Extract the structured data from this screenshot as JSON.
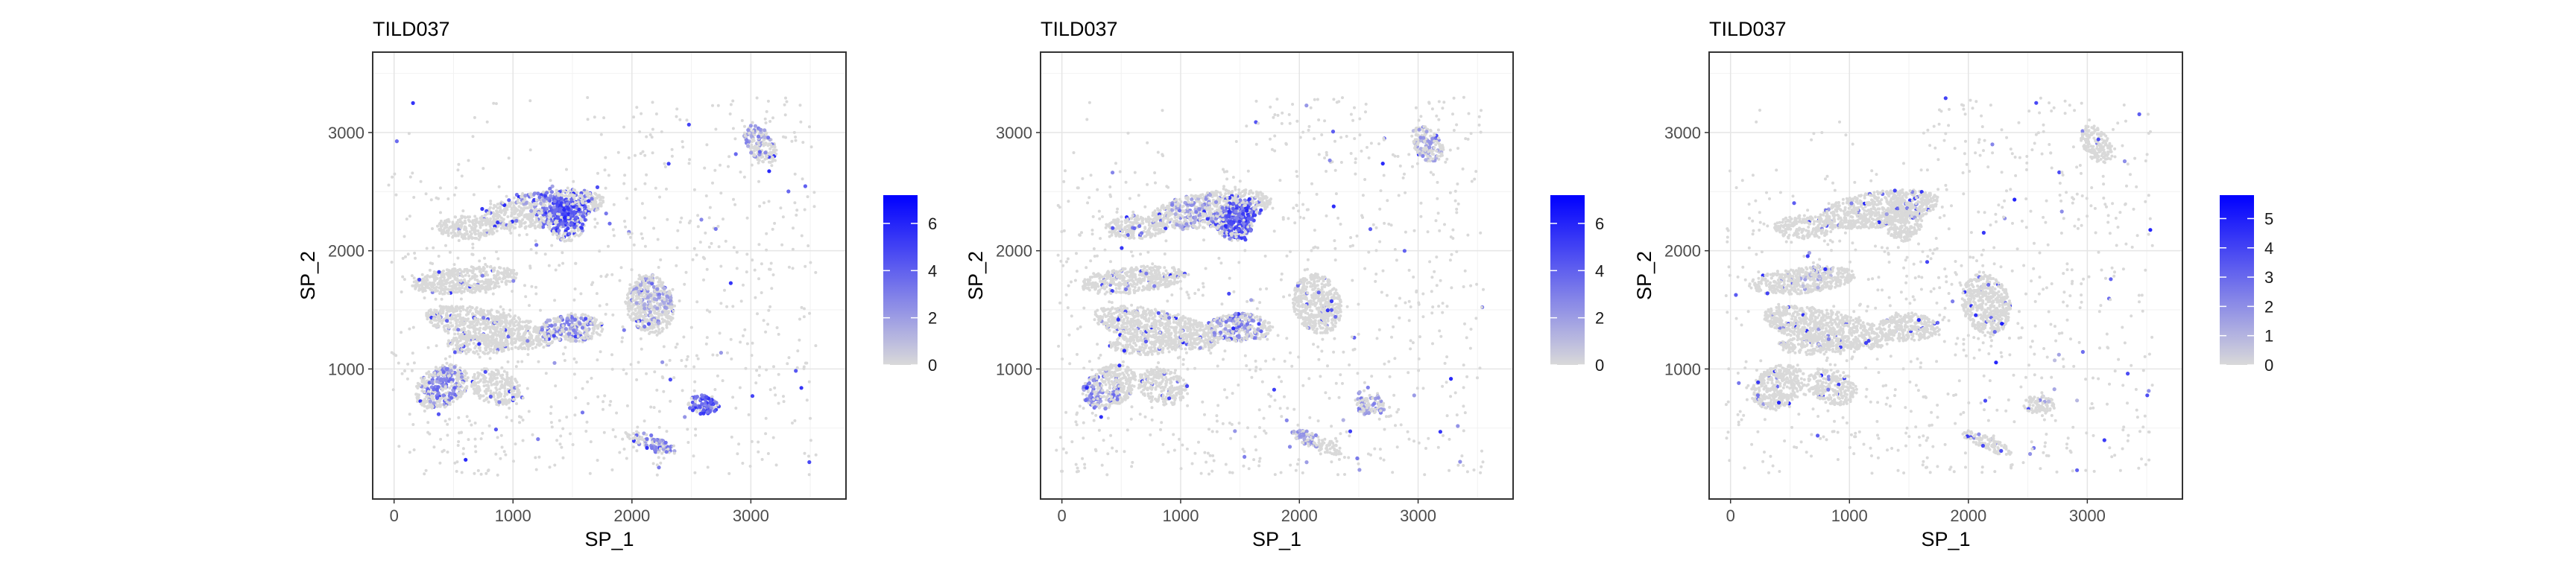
{
  "chart_data": [
    {
      "type": "scatter",
      "title": "TILD037",
      "xlabel": "SP_1",
      "ylabel": "SP_2",
      "xlim": [
        -180,
        3800
      ],
      "ylim": [
        -100,
        3680
      ],
      "xticks": [
        0,
        1000,
        2000,
        3000
      ],
      "yticks": [
        1000,
        2000,
        3000
      ],
      "grid": true,
      "legend": {
        "position": "right",
        "type": "colorbar",
        "min": 0,
        "max": 7.2,
        "ticks": [
          0,
          2,
          4,
          6
        ]
      },
      "color_low": "#d9d9d9",
      "color_high": "#0000ff",
      "seed": 11,
      "hotspots": [
        {
          "x": 1450,
          "y": 2330,
          "intensity": 0.85
        },
        {
          "x": 1230,
          "y": 2480,
          "intensity": 0.55
        },
        {
          "x": 420,
          "y": 880,
          "intensity": 0.6
        },
        {
          "x": 2620,
          "y": 680,
          "intensity": 0.8
        },
        {
          "x": 2200,
          "y": 360,
          "intensity": 0.55
        },
        {
          "x": 1450,
          "y": 1350,
          "intensity": 0.5
        },
        {
          "x": 3000,
          "y": 3000,
          "intensity": 0.45
        },
        {
          "x": 2200,
          "y": 1600,
          "intensity": 0.35
        }
      ]
    },
    {
      "type": "scatter",
      "title": "TILD037",
      "xlabel": "SP_1",
      "ylabel": "SP_2",
      "xlim": [
        -180,
        3800
      ],
      "ylim": [
        -100,
        3680
      ],
      "xticks": [
        0,
        1000,
        2000,
        3000
      ],
      "yticks": [
        1000,
        2000,
        3000
      ],
      "grid": true,
      "legend": {
        "position": "right",
        "type": "colorbar",
        "min": 0,
        "max": 7.2,
        "ticks": [
          0,
          2,
          4,
          6
        ]
      },
      "color_low": "#d9d9d9",
      "color_high": "#0000ff",
      "seed": 23,
      "hotspots": [
        {
          "x": 1500,
          "y": 2250,
          "intensity": 0.85
        },
        {
          "x": 1100,
          "y": 2350,
          "intensity": 0.45
        },
        {
          "x": 250,
          "y": 780,
          "intensity": 0.55
        },
        {
          "x": 2550,
          "y": 680,
          "intensity": 0.5
        },
        {
          "x": 1450,
          "y": 1400,
          "intensity": 0.5
        },
        {
          "x": 2000,
          "y": 400,
          "intensity": 0.45
        },
        {
          "x": 3100,
          "y": 2900,
          "intensity": 0.35
        }
      ]
    },
    {
      "type": "scatter",
      "title": "TILD037",
      "xlabel": "SP_1",
      "ylabel": "SP_2",
      "xlim": [
        -180,
        3800
      ],
      "ylim": [
        -100,
        3680
      ],
      "xticks": [
        0,
        1000,
        2000,
        3000
      ],
      "yticks": [
        1000,
        2000,
        3000
      ],
      "grid": true,
      "legend": {
        "position": "right",
        "type": "colorbar",
        "min": 0,
        "max": 5.8,
        "ticks": [
          0,
          1,
          2,
          3,
          4,
          5
        ]
      },
      "color_low": "#d9d9d9",
      "color_high": "#0000ff",
      "seed": 37,
      "hotspots": [
        {
          "x": 700,
          "y": 1900,
          "intensity": 0.3
        },
        {
          "x": 2800,
          "y": 900,
          "intensity": 0.3
        },
        {
          "x": 1900,
          "y": 2200,
          "intensity": 0.25
        }
      ]
    }
  ]
}
